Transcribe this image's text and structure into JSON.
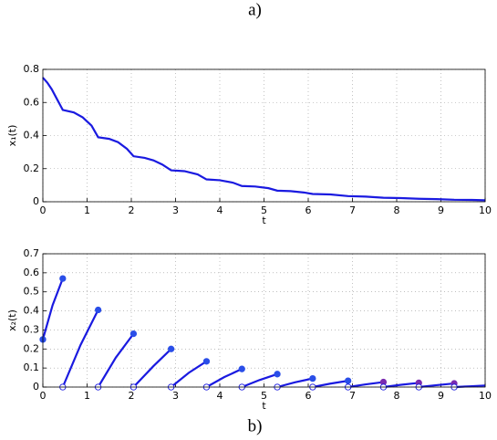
{
  "chart_data": [
    {
      "type": "line",
      "title": "a)",
      "xlabel": "t",
      "ylabel": "x₁(t)",
      "xlim": [
        0,
        10
      ],
      "ylim": [
        0,
        0.8
      ],
      "xticks": [
        0,
        1,
        2,
        3,
        4,
        5,
        6,
        7,
        8,
        9,
        10
      ],
      "yticks": [
        0,
        0.2,
        0.4,
        0.6,
        0.8
      ],
      "grid": true,
      "series": [
        {
          "color": "#1a1ae0",
          "x": [
            0,
            0.1,
            0.2,
            0.3,
            0.4,
            0.45,
            0.7,
            0.9,
            1.1,
            1.25,
            1.5,
            1.7,
            1.9,
            2.05,
            2.3,
            2.5,
            2.7,
            2.9,
            3.2,
            3.5,
            3.7,
            4.0,
            4.3,
            4.5,
            4.8,
            5.1,
            5.3,
            5.6,
            5.9,
            6.1,
            6.5,
            6.9,
            7.3,
            7.7,
            8.1,
            8.5,
            8.9,
            9.3,
            9.7,
            10
          ],
          "values": [
            0.75,
            0.72,
            0.68,
            0.63,
            0.58,
            0.555,
            0.54,
            0.51,
            0.46,
            0.39,
            0.38,
            0.36,
            0.32,
            0.275,
            0.265,
            0.25,
            0.225,
            0.19,
            0.185,
            0.165,
            0.135,
            0.13,
            0.115,
            0.095,
            0.092,
            0.082,
            0.067,
            0.064,
            0.056,
            0.047,
            0.044,
            0.034,
            0.031,
            0.024,
            0.022,
            0.018,
            0.016,
            0.012,
            0.011,
            0.009
          ]
        }
      ]
    },
    {
      "type": "line",
      "title": "b)",
      "xlabel": "t",
      "ylabel": "x₂(t)",
      "xlim": [
        0,
        10
      ],
      "ylim": [
        0,
        0.7
      ],
      "xticks": [
        0,
        1,
        2,
        3,
        4,
        5,
        6,
        7,
        8,
        9,
        10
      ],
      "yticks": [
        0,
        0.1,
        0.2,
        0.3,
        0.4,
        0.5,
        0.6,
        0.7
      ],
      "grid": true,
      "series": [
        {
          "color": "#1a1ae0",
          "marker_color": "#2a4ee8",
          "start_marker": "filled",
          "end_marker": "filled",
          "x": [
            0,
            0.22,
            0.45
          ],
          "values": [
            0.25,
            0.43,
            0.57
          ]
        },
        {
          "color": "#1a1ae0",
          "marker_color": "#2a4ee8",
          "start_marker": "open",
          "end_marker": "filled",
          "x": [
            0.45,
            0.85,
            1.25
          ],
          "values": [
            0,
            0.22,
            0.405
          ]
        },
        {
          "color": "#1a1ae0",
          "marker_color": "#2a4ee8",
          "start_marker": "open",
          "end_marker": "filled",
          "x": [
            1.25,
            1.65,
            2.05
          ],
          "values": [
            0,
            0.155,
            0.28
          ]
        },
        {
          "color": "#1a1ae0",
          "marker_color": "#2a4ee8",
          "start_marker": "open",
          "end_marker": "filled",
          "x": [
            2.05,
            2.5,
            2.9
          ],
          "values": [
            0,
            0.11,
            0.2
          ]
        },
        {
          "color": "#1a1ae0",
          "marker_color": "#2a4ee8",
          "start_marker": "open",
          "end_marker": "filled",
          "x": [
            2.9,
            3.3,
            3.7
          ],
          "values": [
            0,
            0.075,
            0.135
          ]
        },
        {
          "color": "#1a1ae0",
          "marker_color": "#2a4ee8",
          "start_marker": "open",
          "end_marker": "filled",
          "x": [
            3.7,
            4.1,
            4.5
          ],
          "values": [
            0,
            0.052,
            0.095
          ]
        },
        {
          "color": "#1a1ae0",
          "marker_color": "#2a4ee8",
          "start_marker": "open",
          "end_marker": "filled",
          "x": [
            4.5,
            4.9,
            5.3
          ],
          "values": [
            0,
            0.037,
            0.068
          ]
        },
        {
          "color": "#1a1ae0",
          "marker_color": "#2a4ee8",
          "start_marker": "open",
          "end_marker": "filled",
          "x": [
            5.3,
            5.7,
            6.1
          ],
          "values": [
            0,
            0.025,
            0.045
          ]
        },
        {
          "color": "#1a1ae0",
          "marker_color": "#2a4ee8",
          "start_marker": "open",
          "end_marker": "filled",
          "x": [
            6.1,
            6.5,
            6.9
          ],
          "values": [
            0,
            0.018,
            0.033
          ]
        },
        {
          "color": "#1a1ae0",
          "marker_color": "#7a2bb0",
          "start_marker": "open",
          "end_marker": "filled",
          "x": [
            6.9,
            7.3,
            7.7
          ],
          "values": [
            0,
            0.014,
            0.026
          ]
        },
        {
          "color": "#1a1ae0",
          "marker_color": "#7a2bb0",
          "start_marker": "open",
          "end_marker": "filled",
          "x": [
            7.7,
            8.1,
            8.5
          ],
          "values": [
            0,
            0.012,
            0.022
          ]
        },
        {
          "color": "#1a1ae0",
          "marker_color": "#7a2bb0",
          "start_marker": "open",
          "end_marker": "filled",
          "x": [
            8.5,
            8.9,
            9.3
          ],
          "values": [
            0,
            0.01,
            0.019
          ]
        },
        {
          "color": "#1a1ae0",
          "marker_color": "#2a4ee8",
          "start_marker": "open",
          "end_marker": "none",
          "x": [
            9.3,
            9.65,
            10
          ],
          "values": [
            0,
            0.004,
            0.008
          ]
        }
      ]
    }
  ]
}
